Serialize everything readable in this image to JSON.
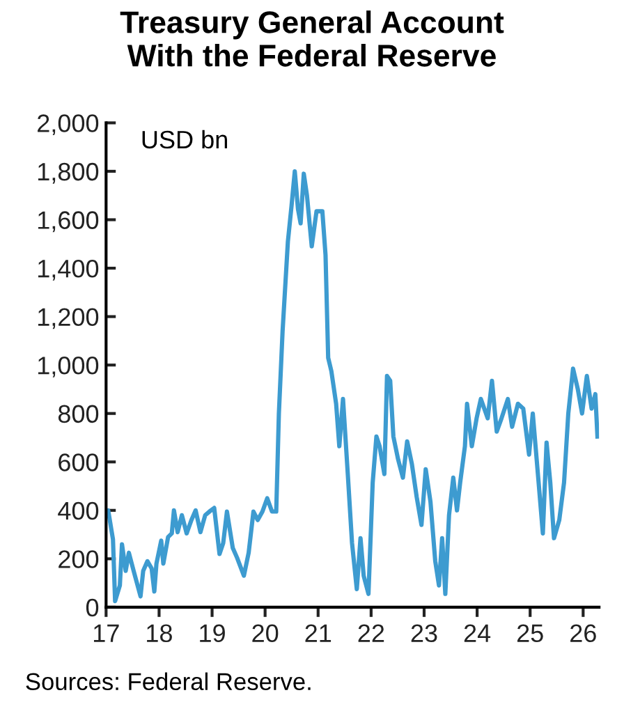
{
  "chart_data": {
    "type": "line",
    "title": "Treasury General Account\nWith the Federal Reserve",
    "ylabel": "USD bn",
    "annotations": [
      "Sources: Federal Reserve."
    ],
    "series": [
      {
        "color": "#3d9bd0",
        "x": [
          17.0,
          17.04,
          17.13,
          17.17,
          17.26,
          17.3,
          17.37,
          17.43,
          17.52,
          17.65,
          17.7,
          17.78,
          17.86,
          17.91,
          17.95,
          18.04,
          18.08,
          18.17,
          18.24,
          18.28,
          18.35,
          18.43,
          18.52,
          18.61,
          18.69,
          18.78,
          18.87,
          18.95,
          19.04,
          19.14,
          19.21,
          19.28,
          19.39,
          19.47,
          19.6,
          19.69,
          19.78,
          19.86,
          19.95,
          20.04,
          20.13,
          20.21,
          20.26,
          20.33,
          20.43,
          20.5,
          20.56,
          20.62,
          20.67,
          20.73,
          20.79,
          20.88,
          20.97,
          21.08,
          21.14,
          21.19,
          21.25,
          21.34,
          21.4,
          21.47,
          21.56,
          21.64,
          21.73,
          21.8,
          21.86,
          21.95,
          22.03,
          22.1,
          22.16,
          22.25,
          22.3,
          22.36,
          22.42,
          22.51,
          22.6,
          22.68,
          22.77,
          22.86,
          22.95,
          23.03,
          23.12,
          23.21,
          23.28,
          23.34,
          23.4,
          23.47,
          23.55,
          23.62,
          23.68,
          23.77,
          23.81,
          23.9,
          23.99,
          24.07,
          24.2,
          24.28,
          24.37,
          24.46,
          24.58,
          24.66,
          24.77,
          24.87,
          24.98,
          25.05,
          25.16,
          25.24,
          25.31,
          25.38,
          25.45,
          25.55,
          25.64,
          25.72,
          25.81,
          25.9,
          25.98,
          26.07,
          26.16,
          26.23,
          26.27
        ],
        "values": [
          380,
          400,
          280,
          25,
          90,
          260,
          150,
          225,
          150,
          45,
          150,
          190,
          160,
          65,
          180,
          275,
          180,
          290,
          305,
          400,
          310,
          380,
          305,
          360,
          400,
          310,
          380,
          395,
          410,
          220,
          265,
          395,
          245,
          205,
          130,
          225,
          395,
          360,
          395,
          450,
          395,
          395,
          800,
          1140,
          1510,
          1660,
          1800,
          1645,
          1585,
          1790,
          1700,
          1490,
          1635,
          1635,
          1455,
          1030,
          975,
          840,
          665,
          860,
          550,
          265,
          75,
          285,
          130,
          55,
          515,
          705,
          665,
          550,
          955,
          935,
          705,
          610,
          535,
          685,
          590,
          455,
          340,
          570,
          435,
          190,
          90,
          285,
          55,
          380,
          535,
          400,
          515,
          665,
          840,
          665,
          780,
          860,
          780,
          935,
          725,
          780,
          860,
          745,
          840,
          820,
          630,
          800,
          515,
          305,
          680,
          515,
          285,
          360,
          515,
          800,
          985,
          900,
          800,
          955,
          820,
          880,
          705
        ]
      }
    ],
    "xlim": [
      17,
      26.3
    ],
    "xticks": [
      17,
      18,
      19,
      20,
      21,
      22,
      23,
      24,
      25,
      26
    ],
    "ylim": [
      0,
      2000
    ],
    "yticks": [
      0,
      200,
      400,
      600,
      800,
      {
        "value": 1000,
        "label": "1,000"
      },
      {
        "value": 1200,
        "label": "1,200"
      },
      {
        "value": 1400,
        "label": "1,400"
      },
      {
        "value": 1600,
        "label": "1,600"
      },
      {
        "value": 1800,
        "label": "1,800"
      },
      {
        "value": 2000,
        "label": "2,000"
      }
    ],
    "grid": false,
    "legend": false,
    "marker": "none",
    "line_style": "solid"
  }
}
